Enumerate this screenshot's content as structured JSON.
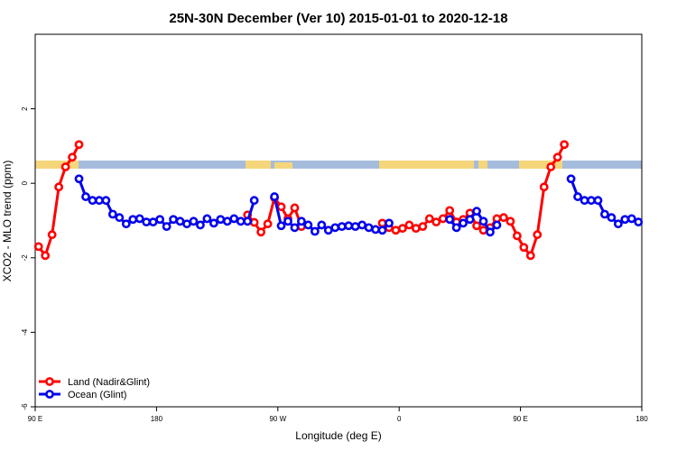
{
  "chart_data": {
    "type": "line",
    "title": "25N-30N December (Ver 10)   2015-01-01 to 2020-12-18",
    "x_label": "Longitude (deg E)",
    "y_label": "XCO2 - MLO trend (ppm)",
    "x": [
      92.5,
      97.5,
      102.5,
      107.5,
      112.5,
      117.5,
      122.5,
      127.5,
      132.5,
      137.5,
      142.5,
      147.5,
      152.5,
      157.5,
      162.5,
      167.5,
      172.5,
      177.5,
      182.5,
      187.5,
      192.5,
      197.5,
      202.5,
      207.5,
      212.5,
      217.5,
      222.5,
      227.5,
      232.5,
      237.5,
      242.5,
      247.5,
      252.5,
      257.5,
      262.5,
      267.5,
      272.5,
      277.5,
      282.5,
      287.5,
      292.5,
      297.5,
      302.5,
      307.5,
      312.5,
      317.5,
      322.5,
      327.5,
      332.5,
      337.5,
      342.5,
      347.5,
      352.5,
      357.5,
      362.5,
      367.5,
      372.5,
      377.5,
      382.5,
      387.5,
      392.5,
      397.5,
      402.5,
      407.5,
      412.5,
      417.5,
      422.5,
      427.5,
      432.5,
      437.5,
      442.5,
      447.5,
      452.5,
      457.5,
      462.5,
      467.5,
      472.5,
      477.5,
      482.5,
      487.5,
      492.5,
      497.5,
      502.5,
      507.5,
      512.5,
      517.5,
      522.5,
      527.5,
      532.5,
      537.5
    ],
    "series": [
      {
        "name": "Land (Nadir&Glint)",
        "color": "#ff0000",
        "values": [
          -1.7,
          -1.94,
          -1.38,
          -0.1,
          0.44,
          0.7,
          1.04,
          null,
          null,
          null,
          null,
          null,
          null,
          null,
          null,
          null,
          null,
          null,
          null,
          null,
          null,
          null,
          null,
          null,
          null,
          null,
          null,
          null,
          null,
          null,
          null,
          -0.85,
          -1.05,
          -1.31,
          -1.09,
          -0.39,
          -0.63,
          -0.95,
          -0.66,
          -1.16,
          null,
          null,
          null,
          null,
          null,
          null,
          null,
          null,
          null,
          null,
          null,
          -1.07,
          -1.19,
          -1.26,
          -1.21,
          -1.12,
          -1.21,
          -1.16,
          -0.95,
          -1.04,
          -0.95,
          -0.73,
          -1.04,
          -0.97,
          -0.8,
          -1.14,
          -1.26,
          -1.19,
          -0.95,
          -0.92,
          -1.02,
          -1.41,
          -1.72,
          -1.94,
          -1.38,
          -0.1,
          0.44,
          0.7,
          1.04,
          null,
          null,
          null,
          null,
          null,
          null,
          null,
          null,
          null,
          null,
          null
        ]
      },
      {
        "name": "Ocean (Glint)",
        "color": "#0000ee",
        "values": [
          null,
          null,
          null,
          null,
          null,
          null,
          0.12,
          -0.36,
          -0.46,
          -0.46,
          -0.46,
          -0.83,
          -0.92,
          -1.09,
          -0.97,
          -0.95,
          -1.04,
          -1.04,
          -0.97,
          -1.16,
          -0.97,
          -1.02,
          -1.09,
          -1.02,
          -1.12,
          -0.95,
          -1.07,
          -0.97,
          -1.02,
          -0.95,
          -1.02,
          -1.02,
          -0.46,
          null,
          null,
          -0.36,
          -1.14,
          -1.02,
          -1.19,
          -1.02,
          -1.12,
          -1.29,
          -1.12,
          -1.26,
          -1.19,
          -1.16,
          -1.14,
          -1.16,
          -1.12,
          -1.19,
          -1.24,
          -1.26,
          -1.07,
          null,
          null,
          null,
          null,
          null,
          null,
          null,
          null,
          -0.97,
          -1.19,
          -1.07,
          -0.97,
          -0.75,
          -1.02,
          -1.31,
          -1.12,
          null,
          null,
          null,
          null,
          null,
          null,
          null,
          null,
          null,
          null,
          0.12,
          -0.36,
          -0.46,
          -0.46,
          -0.46,
          -0.83,
          -0.92,
          -1.09,
          -0.97,
          -0.95,
          -1.04
        ]
      }
    ],
    "xlim": [
      90,
      540
    ],
    "xticks": [
      {
        "value": 90,
        "label": "90 E"
      },
      180,
      {
        "value": 270,
        "label": "90 W"
      },
      {
        "value": 360,
        "label": "0"
      },
      {
        "value": 450,
        "label": "90 E"
      },
      {
        "value": 540,
        "label": "180"
      }
    ],
    "ylim": [
      -6,
      4
    ],
    "yticks": [
      -6,
      -4,
      -2,
      0,
      2
    ],
    "legend": "bottom-left"
  }
}
